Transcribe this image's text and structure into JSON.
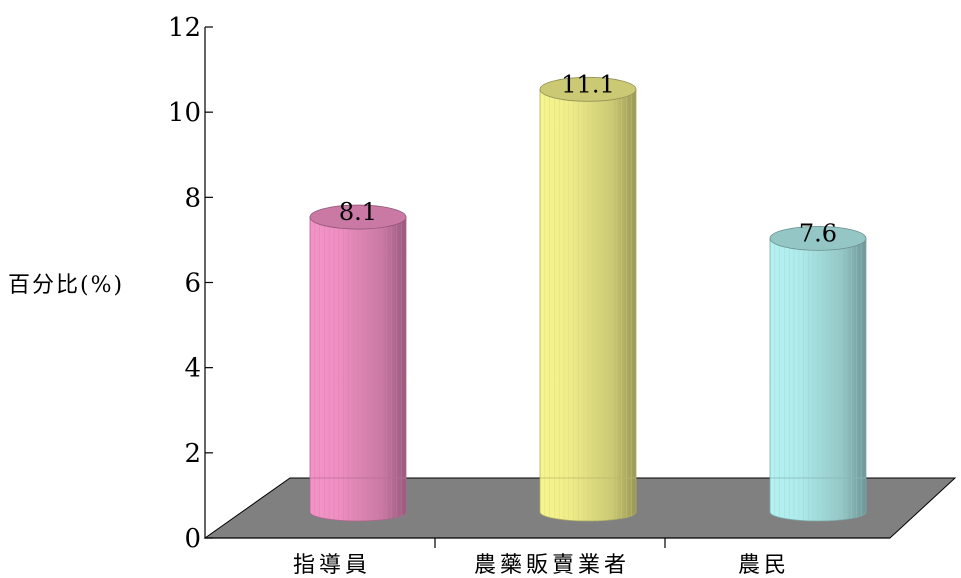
{
  "chart_data": {
    "type": "bar",
    "style": "3d-cylinder",
    "categories": [
      "指導員",
      "農藥販賣業者",
      "農民"
    ],
    "values": [
      8.1,
      11.1,
      7.6
    ],
    "data_labels": [
      "8.1",
      "11.1",
      "7.6"
    ],
    "colors": [
      "#f593c8",
      "#f7f58e",
      "#b4f2f2"
    ],
    "floor_color": "#808080",
    "title": "",
    "xlabel": "",
    "ylabel": "百分比(%)",
    "ylim": [
      0,
      12
    ],
    "yticks": [
      0,
      2,
      4,
      6,
      8,
      10,
      12
    ],
    "ytick_labels": [
      "0",
      "2",
      "4",
      "6",
      "8",
      "10",
      "12"
    ],
    "grid": false,
    "legend": "none"
  }
}
